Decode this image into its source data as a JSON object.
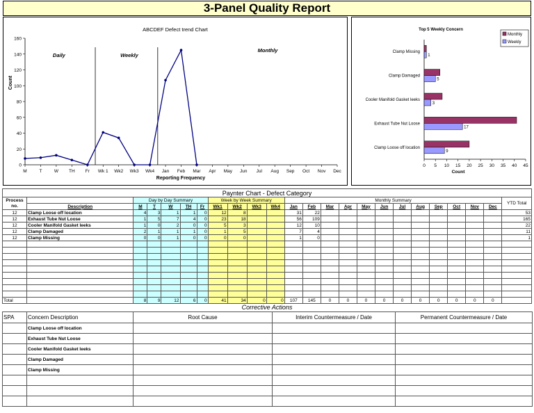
{
  "title": "3-Panel Quality Report",
  "trend_chart": {
    "title": "ABCDEF Defect trend Chart",
    "xlabel": "Reporting Frequency",
    "ylabel": "Count",
    "section_labels": [
      "Daily",
      "Weekly",
      "Monthly"
    ],
    "categories": [
      "M",
      "T",
      "W",
      "TH",
      "Fr",
      "Wk 1",
      "Wk2",
      "Wk3",
      "Wk4",
      "Jan",
      "Feb",
      "Mar",
      "Apr",
      "May",
      "Jun",
      "Jul",
      "Aug",
      "Sep",
      "Oct",
      "Nov",
      "Dec"
    ],
    "yticks": [
      "0",
      "20",
      "40",
      "60",
      "80",
      "100",
      "120",
      "140",
      "160"
    ]
  },
  "concern_chart": {
    "title": "Top 5 Weekly Concern",
    "xlabel": "Count",
    "legend": [
      "Monthly",
      "Weekly"
    ],
    "categories": [
      "Clamp Missing",
      "Clamp Damaged",
      "Cooler Manifold Gasket leeks",
      "Exhaust Tube Nut Loose",
      "Clamp Loose off location"
    ],
    "xticks": [
      "0",
      "5",
      "10",
      "15",
      "20",
      "25",
      "30",
      "35",
      "40",
      "45"
    ],
    "data_labels": [
      "1",
      "5",
      "3",
      "17",
      "9"
    ]
  },
  "chart_data": [
    {
      "type": "line",
      "title": "ABCDEF Defect trend Chart",
      "xlabel": "Reporting Frequency",
      "ylabel": "Count",
      "ylim": [
        0,
        160
      ],
      "categories": [
        "M",
        "T",
        "W",
        "TH",
        "Fr",
        "Wk 1",
        "Wk2",
        "Wk3",
        "Wk4",
        "Jan",
        "Feb",
        "Mar",
        "Apr",
        "May",
        "Jun",
        "Jul",
        "Aug",
        "Sep",
        "Oct",
        "Nov",
        "Dec"
      ],
      "values": [
        8,
        9,
        12,
        6,
        0,
        41,
        34,
        0,
        0,
        107,
        145,
        0,
        null,
        null,
        null,
        null,
        null,
        null,
        null,
        null,
        null
      ],
      "grid": false
    },
    {
      "type": "bar",
      "orientation": "horizontal",
      "title": "Top 5 Weekly Concern",
      "xlabel": "Count",
      "xlim": [
        0,
        45
      ],
      "categories": [
        "Clamp Missing",
        "Clamp Damaged",
        "Cooler Manifold Gasket leeks",
        "Exhaust Tube Nut Loose",
        "Clamp Loose off location"
      ],
      "series": [
        {
          "name": "Monthly",
          "values": [
            1,
            7,
            8,
            41,
            20
          ],
          "color": "#993366"
        },
        {
          "name": "Weekly",
          "values": [
            1,
            5,
            3,
            17,
            9
          ],
          "color": "#9999ff"
        }
      ],
      "legend": "top-right"
    }
  ],
  "paynter": {
    "title": "Paynter Chart - Defect Category",
    "col_process": "Process no.",
    "col_desc": "Description",
    "group_day": "Day by Day Summary",
    "group_week": "Week by Week Summary",
    "group_month": "Monthly Summary",
    "col_ytd": "YTD Total",
    "days": [
      "M",
      "T",
      "W",
      "TH",
      "Fr"
    ],
    "weeks": [
      "Wk1",
      "Wk2",
      "Wk3",
      "Wk4"
    ],
    "months": [
      "Jan",
      "Feb",
      "Mar",
      "Apr",
      "May",
      "Jun",
      "Jul",
      "Aug",
      "Sep",
      "Oct",
      "Nov",
      "Dec"
    ],
    "rows": [
      {
        "process": "12",
        "desc": "Clamp Loose off location",
        "days": [
          "4",
          "3",
          "1",
          "1",
          "0"
        ],
        "weeks": [
          "12",
          "8",
          "",
          ""
        ],
        "months": [
          "31",
          "22",
          "",
          "",
          "",
          "",
          "",
          "",
          "",
          "",
          "",
          ""
        ],
        "ytd": "53"
      },
      {
        "process": "12",
        "desc": "Exhaust Tube Nut Loose",
        "days": [
          "1",
          "5",
          "7",
          "4",
          "0"
        ],
        "weeks": [
          "23",
          "18",
          "",
          ""
        ],
        "months": [
          "56",
          "109",
          "",
          "",
          "",
          "",
          "",
          "",
          "",
          "",
          "",
          ""
        ],
        "ytd": "165"
      },
      {
        "process": "12",
        "desc": "Cooler Manifold Gasket leeks",
        "days": [
          "1",
          "0",
          "2",
          "0",
          "0"
        ],
        "weeks": [
          "5",
          "3",
          "",
          ""
        ],
        "months": [
          "12",
          "10",
          "",
          "",
          "",
          "",
          "",
          "",
          "",
          "",
          "",
          ""
        ],
        "ytd": "22"
      },
      {
        "process": "12",
        "desc": "Clamp Damaged",
        "days": [
          "2",
          "1",
          "1",
          "1",
          "0"
        ],
        "weeks": [
          "1",
          "5",
          "",
          ""
        ],
        "months": [
          "7",
          "4",
          "",
          "",
          "",
          "",
          "",
          "",
          "",
          "",
          "",
          ""
        ],
        "ytd": "11"
      },
      {
        "process": "12",
        "desc": "Clamp Missing",
        "days": [
          "0",
          "0",
          "1",
          "0",
          "0"
        ],
        "weeks": [
          "0",
          "0",
          "",
          ""
        ],
        "months": [
          "1",
          "0",
          "",
          "",
          "",
          "",
          "",
          "",
          "",
          "",
          "",
          ""
        ],
        "ytd": "1"
      }
    ],
    "total_label": "Total",
    "totals_days": [
      "8",
      "9",
      "12",
      "6",
      "0"
    ],
    "totals_weeks": [
      "41",
      "34",
      "0",
      "0"
    ],
    "totals_months": [
      "107",
      "145",
      "0",
      "0",
      "0",
      "0",
      "0",
      "0",
      "0",
      "0",
      "0",
      "0"
    ]
  },
  "corrective": {
    "title": "Corrective Actions",
    "col_spa": "SPA",
    "col_concern": "Concern Description",
    "col_root": "Root Cause",
    "col_interim": "Interim Countermeasure / Date",
    "col_permanent": "Permanent Countermeasure / Date",
    "rows": [
      "Clamp Loose off location",
      "Exhaust Tube Nut Loose",
      "Cooler Manifold Gasket leeks",
      "Clamp Damaged",
      "Clamp Missing",
      "",
      "",
      ""
    ]
  }
}
